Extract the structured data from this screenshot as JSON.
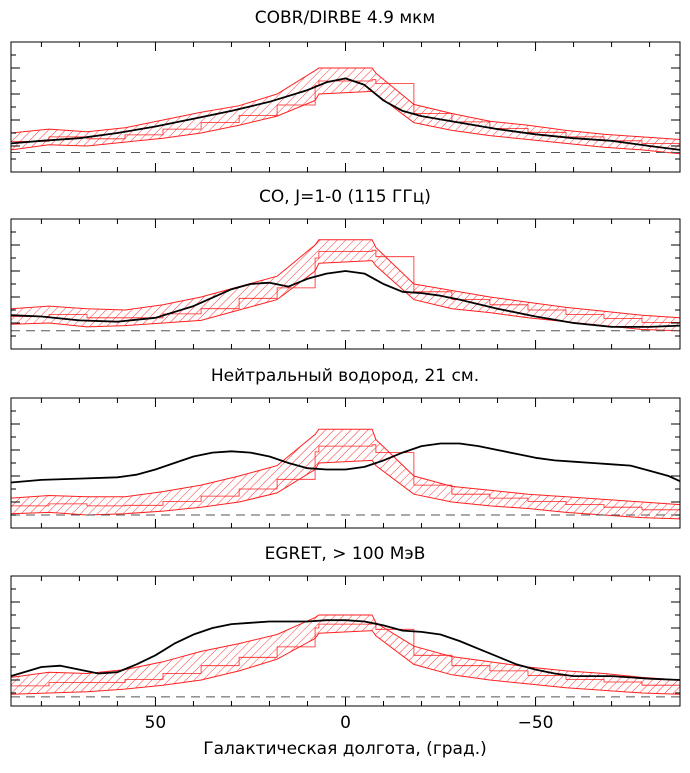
{
  "xlabel": "Галактическая долгота, (град.)",
  "x_ticks": [
    50,
    0,
    -50
  ],
  "x_tick_labels": [
    "50",
    "0",
    "−50"
  ],
  "colors": {
    "profile": "#000000",
    "band": "#ff2020",
    "zero_line": "#555555"
  },
  "chart_data": [
    {
      "type": "line",
      "title": "COBR/DIRBE 4.9 мкм",
      "xlim": [
        88,
        -88
      ],
      "ylim": [
        0,
        1
      ],
      "grid": false,
      "x_reversed": true,
      "series": [
        {
          "kind": "line",
          "x": [
            88,
            80,
            70,
            60,
            50,
            40,
            30,
            20,
            10,
            5,
            0,
            -5,
            -10,
            -15,
            -20,
            -30,
            -40,
            -50,
            -60,
            -70,
            -80,
            -88
          ],
          "y": [
            0.22,
            0.24,
            0.26,
            0.3,
            0.35,
            0.41,
            0.47,
            0.54,
            0.63,
            0.69,
            0.72,
            0.67,
            0.55,
            0.47,
            0.43,
            0.38,
            0.33,
            0.29,
            0.26,
            0.24,
            0.2,
            0.17
          ]
        },
        {
          "kind": "band",
          "x": [
            88,
            78,
            68,
            58,
            48,
            38,
            28,
            18,
            8,
            7,
            -7,
            -8,
            -18,
            -28,
            -38,
            -48,
            -58,
            -68,
            -78,
            -88
          ],
          "upper": [
            0.3,
            0.33,
            0.31,
            0.34,
            0.4,
            0.46,
            0.51,
            0.6,
            0.78,
            0.8,
            0.8,
            0.76,
            0.52,
            0.45,
            0.39,
            0.36,
            0.32,
            0.29,
            0.27,
            0.25
          ],
          "lower": [
            0.17,
            0.21,
            0.2,
            0.23,
            0.26,
            0.3,
            0.36,
            0.43,
            0.55,
            0.6,
            0.62,
            0.6,
            0.38,
            0.32,
            0.28,
            0.25,
            0.22,
            0.19,
            0.17,
            0.14
          ]
        }
      ],
      "baseline": 0.15
    },
    {
      "type": "line",
      "title": "CO, J=1-0 (115 ГГц)",
      "xlim": [
        88,
        -88
      ],
      "ylim": [
        0,
        1
      ],
      "grid": false,
      "x_reversed": true,
      "series": [
        {
          "kind": "line",
          "x": [
            88,
            80,
            70,
            60,
            50,
            40,
            30,
            25,
            20,
            15,
            10,
            5,
            0,
            -5,
            -10,
            -15,
            -20,
            -25,
            -30,
            -40,
            -50,
            -60,
            -70,
            -80,
            -88
          ],
          "y": [
            0.26,
            0.25,
            0.22,
            0.21,
            0.24,
            0.33,
            0.46,
            0.5,
            0.51,
            0.48,
            0.54,
            0.58,
            0.6,
            0.58,
            0.5,
            0.44,
            0.43,
            0.41,
            0.38,
            0.31,
            0.25,
            0.2,
            0.17,
            0.17,
            0.18
          ]
        },
        {
          "kind": "band",
          "x": [
            88,
            78,
            68,
            58,
            48,
            38,
            28,
            18,
            8,
            7,
            -7,
            -8,
            -18,
            -28,
            -38,
            -48,
            -58,
            -68,
            -78,
            -88
          ],
          "upper": [
            0.31,
            0.33,
            0.31,
            0.3,
            0.34,
            0.4,
            0.48,
            0.56,
            0.8,
            0.84,
            0.84,
            0.78,
            0.5,
            0.45,
            0.4,
            0.36,
            0.32,
            0.29,
            0.26,
            0.24
          ],
          "lower": [
            0.19,
            0.2,
            0.17,
            0.18,
            0.2,
            0.22,
            0.3,
            0.38,
            0.6,
            0.66,
            0.68,
            0.64,
            0.38,
            0.31,
            0.28,
            0.24,
            0.21,
            0.18,
            0.15,
            0.14
          ]
        }
      ],
      "baseline": 0.14
    },
    {
      "type": "line",
      "title": "Нейтральный водород, 21 см.",
      "xlim": [
        88,
        -88
      ],
      "ylim": [
        0,
        1
      ],
      "grid": false,
      "x_reversed": true,
      "series": [
        {
          "kind": "line",
          "x": [
            88,
            80,
            70,
            60,
            55,
            50,
            45,
            40,
            35,
            30,
            25,
            20,
            15,
            10,
            5,
            0,
            -5,
            -10,
            -15,
            -20,
            -25,
            -30,
            -35,
            -40,
            -45,
            -50,
            -55,
            -60,
            -65,
            -70,
            -75,
            -80,
            -85,
            -88
          ],
          "y": [
            0.35,
            0.37,
            0.38,
            0.39,
            0.41,
            0.45,
            0.5,
            0.55,
            0.58,
            0.59,
            0.58,
            0.55,
            0.5,
            0.46,
            0.45,
            0.45,
            0.47,
            0.52,
            0.58,
            0.63,
            0.65,
            0.65,
            0.63,
            0.6,
            0.57,
            0.54,
            0.52,
            0.51,
            0.5,
            0.49,
            0.48,
            0.44,
            0.4,
            0.36
          ]
        },
        {
          "kind": "band",
          "x": [
            88,
            78,
            68,
            58,
            48,
            38,
            28,
            18,
            8,
            7,
            -7,
            -8,
            -18,
            -28,
            -38,
            -48,
            -58,
            -68,
            -78,
            -88
          ],
          "upper": [
            0.23,
            0.25,
            0.24,
            0.24,
            0.28,
            0.33,
            0.4,
            0.48,
            0.72,
            0.76,
            0.76,
            0.68,
            0.4,
            0.32,
            0.29,
            0.26,
            0.24,
            0.22,
            0.2,
            0.18
          ],
          "lower": [
            0.11,
            0.12,
            0.1,
            0.11,
            0.13,
            0.16,
            0.2,
            0.27,
            0.45,
            0.5,
            0.52,
            0.48,
            0.26,
            0.2,
            0.17,
            0.15,
            0.12,
            0.1,
            0.08,
            0.07
          ]
        }
      ],
      "baseline": 0.1
    },
    {
      "type": "line",
      "title": "EGRET, > 100 МэВ",
      "xlim": [
        88,
        -88
      ],
      "ylim": [
        0,
        1
      ],
      "grid": false,
      "x_reversed": true,
      "series": [
        {
          "kind": "line",
          "x": [
            88,
            80,
            75,
            70,
            65,
            60,
            55,
            50,
            45,
            40,
            35,
            30,
            25,
            20,
            15,
            10,
            5,
            0,
            -5,
            -10,
            -15,
            -20,
            -25,
            -30,
            -35,
            -40,
            -45,
            -50,
            -55,
            -60,
            -70,
            -80,
            -88
          ],
          "y": [
            0.23,
            0.3,
            0.31,
            0.28,
            0.25,
            0.26,
            0.32,
            0.39,
            0.48,
            0.55,
            0.6,
            0.63,
            0.64,
            0.65,
            0.65,
            0.65,
            0.66,
            0.66,
            0.65,
            0.62,
            0.58,
            0.57,
            0.55,
            0.5,
            0.44,
            0.38,
            0.32,
            0.28,
            0.25,
            0.23,
            0.23,
            0.21,
            0.2
          ]
        },
        {
          "kind": "band",
          "x": [
            88,
            78,
            68,
            58,
            48,
            38,
            28,
            18,
            8,
            7,
            -7,
            -8,
            -18,
            -28,
            -38,
            -48,
            -58,
            -68,
            -78,
            -88
          ],
          "upper": [
            0.22,
            0.26,
            0.25,
            0.28,
            0.34,
            0.42,
            0.48,
            0.55,
            0.68,
            0.7,
            0.7,
            0.64,
            0.46,
            0.38,
            0.34,
            0.3,
            0.27,
            0.25,
            0.22,
            0.2
          ],
          "lower": [
            0.09,
            0.1,
            0.11,
            0.13,
            0.16,
            0.2,
            0.27,
            0.36,
            0.52,
            0.56,
            0.58,
            0.54,
            0.32,
            0.24,
            0.2,
            0.17,
            0.14,
            0.12,
            0.1,
            0.09
          ]
        }
      ],
      "baseline": 0.07
    }
  ]
}
